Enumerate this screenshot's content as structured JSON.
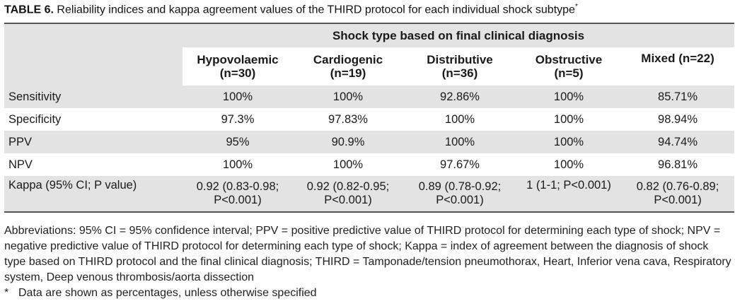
{
  "title_label": "TABLE 6.",
  "title_text": "Reliability indices and kappa agreement values of the THIRD protocol for each individual shock subtype",
  "title_mark": "*",
  "spanning_header": "Shock type based on final clinical diagnosis",
  "columns": [
    {
      "name": "Hypovolaemic",
      "n": "(n=30)"
    },
    {
      "name": "Cardiogenic",
      "n": "(n=19)"
    },
    {
      "name": "Distributive",
      "n": "(n=36)"
    },
    {
      "name": "Obstructive",
      "n": "(n=5)"
    },
    {
      "name": "Mixed (n=22)",
      "n": ""
    }
  ],
  "rows": [
    {
      "label": "Sensitivity",
      "values": [
        "100%",
        "100%",
        "92.86%",
        "100%",
        "85.71%"
      ]
    },
    {
      "label": "Specificity",
      "values": [
        "97.3%",
        "97.83%",
        "100%",
        "100%",
        "98.94%"
      ]
    },
    {
      "label": "PPV",
      "values": [
        "95%",
        "90.9%",
        "100%",
        "100%",
        "94.74%"
      ]
    },
    {
      "label": "NPV",
      "values": [
        "100%",
        "100%",
        "97.67%",
        "100%",
        "96.81%"
      ]
    },
    {
      "label": "Kappa (95% CI; P value)",
      "values": [
        [
          "0.92 (0.83-0.98;",
          "P<0.001)"
        ],
        [
          "0.92 (0.82-0.95;",
          "P<0.001)"
        ],
        [
          "0.89 (0.78-0.92;",
          "P<0.001)"
        ],
        [
          "1 (1-1; P<0.001)",
          ""
        ],
        [
          "0.82 (0.76-0.89;",
          "P<0.001)"
        ]
      ]
    }
  ],
  "footnote_abbrev": "Abbreviations: 95% CI = 95% confidence interval; PPV = positive predictive value of THIRD protocol for determining each type of shock; NPV = negative predictive value of THIRD protocol for determining each type of shock; Kappa = index of agreement between the diagnosis of shock type based on THIRD protocol and the final clinical diagnosis; THIRD = Tamponade/tension pneumothorax, Heart, Inferior vena cava, Respiratory system, Deep venous thrombosis/aorta dissection",
  "footnote_mark": "*",
  "footnote_note": "Data are shown as percentages, unless otherwise specified"
}
